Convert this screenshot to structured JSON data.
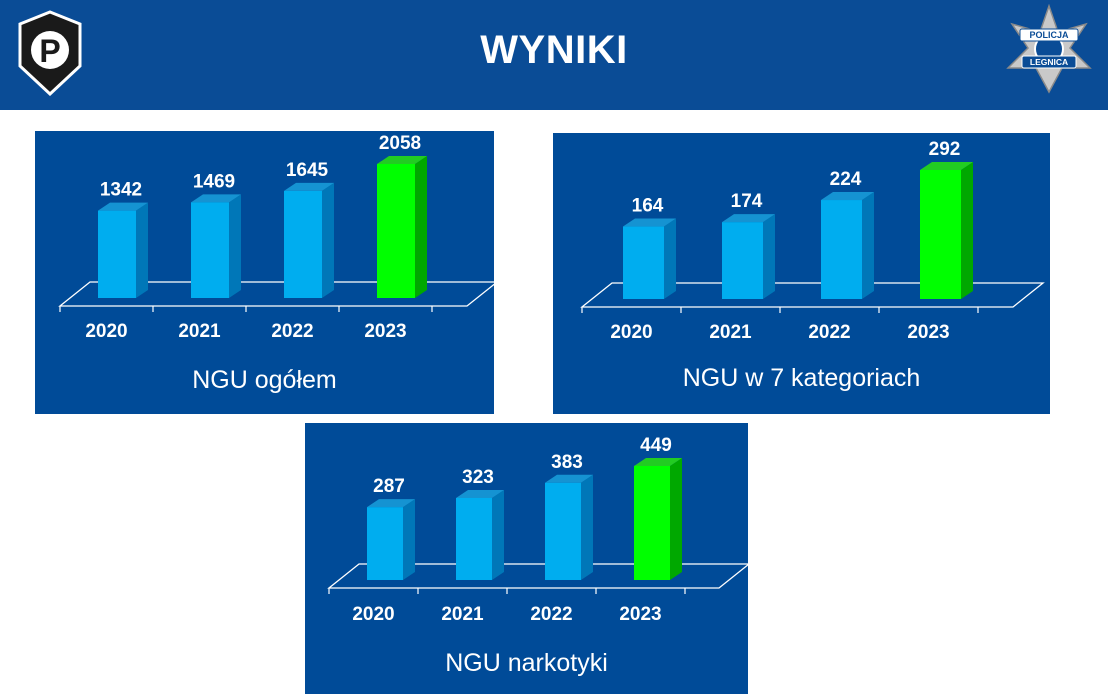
{
  "header": {
    "title": "WYNIKI",
    "left_logo_icon": "police-p-shield-icon",
    "right_logo_icon": "police-star-badge-icon",
    "right_logo_text_top": "POLICJA",
    "right_logo_text_bottom": "LEGNICA"
  },
  "colors": {
    "header_bg": "#0a4c96",
    "panel_bg": "#004b98",
    "bar_blue": "#00adef",
    "bar_green": "#00ff00",
    "text": "#ffffff"
  },
  "chart_data": [
    {
      "type": "bar",
      "title": "NGU ogółem",
      "categories": [
        "2020",
        "2021",
        "2022",
        "2023"
      ],
      "values": [
        1342,
        1469,
        1645,
        2058
      ],
      "highlight_index": 3,
      "data_labels": true,
      "grid": false
    },
    {
      "type": "bar",
      "title": "NGU w 7 kategoriach",
      "categories": [
        "2020",
        "2021",
        "2022",
        "2023"
      ],
      "values": [
        164,
        174,
        224,
        292
      ],
      "highlight_index": 3,
      "data_labels": true,
      "grid": false
    },
    {
      "type": "bar",
      "title": "NGU narkotyki",
      "categories": [
        "2020",
        "2021",
        "2022",
        "2023"
      ],
      "values": [
        287,
        323,
        383,
        449
      ],
      "highlight_index": 3,
      "data_labels": true,
      "grid": false
    }
  ]
}
